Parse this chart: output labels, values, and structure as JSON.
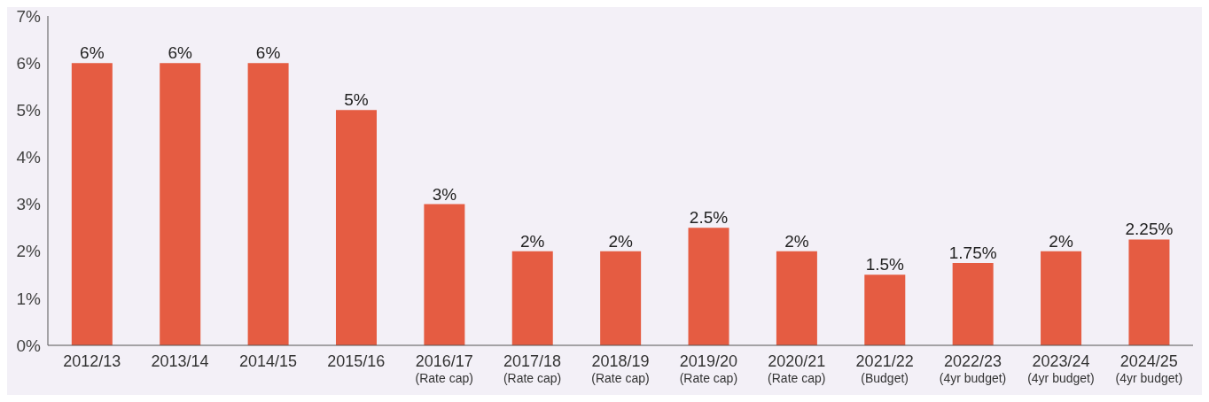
{
  "chart_data": {
    "type": "bar",
    "categories": [
      "2012/13",
      "2013/14",
      "2014/15",
      "2015/16",
      "2016/17\n(Rate cap)",
      "2017/18\n(Rate cap)",
      "2018/19\n(Rate cap)",
      "2019/20\n(Rate cap)",
      "2020/21\n(Rate cap)",
      "2021/22\n(Budget)",
      "2022/23\n(4yr budget)",
      "2023/24\n(4yr budget)",
      "2024/25\n(4yr budget)"
    ],
    "values": [
      6,
      6,
      6,
      5,
      3,
      2,
      2,
      2.5,
      2,
      1.5,
      1.75,
      2,
      2.25
    ],
    "value_labels": [
      "6%",
      "6%",
      "6%",
      "5%",
      "3%",
      "2%",
      "2%",
      "2.5%",
      "2%",
      "1.5%",
      "1.75%",
      "2%",
      "2.25%"
    ],
    "color": "#e55c42",
    "ylim": [
      0,
      7
    ],
    "yticks": [
      {
        "value": 0,
        "label": "0%"
      },
      {
        "value": 1,
        "label": "1%"
      },
      {
        "value": 2,
        "label": "2%"
      },
      {
        "value": 3,
        "label": "3%"
      },
      {
        "value": 4,
        "label": "4%"
      },
      {
        "value": 5,
        "label": "5%"
      },
      {
        "value": 6,
        "label": "6%"
      },
      {
        "value": 7,
        "label": "7%"
      }
    ],
    "grid": false,
    "legend": false
  }
}
